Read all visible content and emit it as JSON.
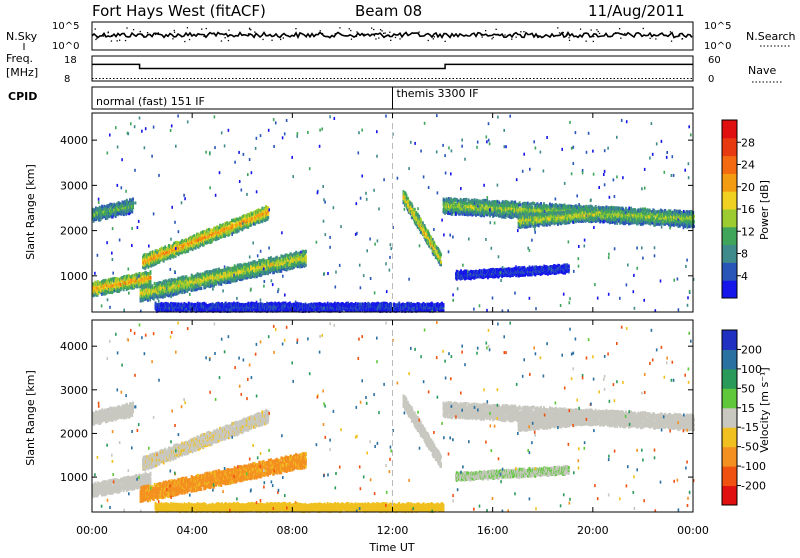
{
  "header": {
    "station": "Fort Hays West (fitACF)",
    "beam": "Beam 08",
    "date": "11/Aug/2011"
  },
  "nsky_panel": {
    "left_label": "N.Sky",
    "right_label": "N.Search",
    "left_ticks": [
      "10^5",
      "10^0"
    ],
    "right_ticks": [
      "10^5",
      "10^0"
    ]
  },
  "freq_panel": {
    "left_label_1": "Freq.",
    "left_label_2": "[MHz]",
    "right_label": "Nave",
    "left_ticks": [
      "18",
      "8"
    ],
    "right_ticks": [
      "60",
      "0"
    ],
    "freq_segments": [
      {
        "start_hour": 0.0,
        "end_hour": 1.9,
        "mhz": 14.0
      },
      {
        "start_hour": 1.9,
        "end_hour": 14.1,
        "mhz": 12.0
      },
      {
        "start_hour": 14.1,
        "end_hour": 24.0,
        "mhz": 14.0
      }
    ],
    "nave_level": 0.3
  },
  "cpid_panel": {
    "label": "CPID",
    "modes": [
      {
        "start_hour": 0.0,
        "label": "normal (fast) 151 IF"
      },
      {
        "start_hour": 12.0,
        "label": "themis 3300 IF"
      }
    ]
  },
  "power_panel": {
    "ylabel": "Slant Range [km]",
    "yticks": [
      "1000",
      "2000",
      "3000",
      "4000"
    ],
    "colorbar": {
      "title": "Power [dB]",
      "ticks": [
        "4",
        "8",
        "12",
        "16",
        "20",
        "24",
        "28"
      ],
      "colors": [
        "#1616ea",
        "#2a55b8",
        "#3f8a8a",
        "#3ea55a",
        "#9ccc2f",
        "#f0d020",
        "#f39c12",
        "#f36a10",
        "#e83a10",
        "#e01010"
      ]
    }
  },
  "velocity_panel": {
    "ylabel": "Slant Range [km]",
    "yticks": [
      "1000",
      "2000",
      "3000",
      "4000"
    ],
    "colorbar": {
      "title": "Velocity [m s⁻¹]",
      "ticks": [
        "200",
        "100",
        "50",
        "15",
        "-15",
        "-50",
        "-100",
        "-200"
      ],
      "colors": [
        "#2030c0",
        "#2a70a0",
        "#2a9a5a",
        "#5ec83a",
        "#c8c8c0",
        "#f0c020",
        "#f39020",
        "#f05010",
        "#e01010"
      ]
    }
  },
  "xaxis": {
    "label": "Time UT",
    "ticks": [
      "00:00",
      "04:00",
      "08:00",
      "12:00",
      "16:00",
      "20:00",
      "00:00"
    ]
  },
  "chart_data": {
    "type": "heatmap",
    "x_range_hours": [
      0,
      24
    ],
    "y_range_km": [
      200,
      4600
    ],
    "marker_hour": 12,
    "echo_bands": [
      {
        "name": "early-low",
        "start_hour": 0.0,
        "end_hour": 2.3,
        "range_start_km": 750,
        "range_end_km": 1000,
        "width_km": 280,
        "power_db": 22,
        "velocity": 0
      },
      {
        "name": "morning-upper",
        "start_hour": 2.0,
        "end_hour": 7.0,
        "range_start_km": 1350,
        "range_end_km": 2450,
        "width_km": 280,
        "power_db": 23,
        "velocity": -5
      },
      {
        "name": "morning-lower",
        "start_hour": 1.9,
        "end_hour": 8.5,
        "range_start_km": 650,
        "range_end_km": 1450,
        "width_km": 330,
        "power_db": 18,
        "velocity": -60
      },
      {
        "name": "early-high",
        "start_hour": 0.0,
        "end_hour": 1.6,
        "range_start_km": 2400,
        "range_end_km": 2600,
        "width_km": 280,
        "power_db": 14,
        "velocity": 0
      },
      {
        "name": "near-range",
        "start_hour": 2.5,
        "end_hour": 14.0,
        "range_start_km": 350,
        "range_end_km": 350,
        "width_km": 140,
        "power_db": 6,
        "velocity": -30
      },
      {
        "name": "post-noon-arc",
        "start_hour": 12.4,
        "end_hour": 13.9,
        "range_start_km": 2800,
        "range_end_km": 1400,
        "width_km": 280,
        "power_db": 21,
        "velocity": 0
      },
      {
        "name": "afternoon",
        "start_hour": 14.0,
        "end_hour": 24.0,
        "range_start_km": 2600,
        "range_end_km": 2300,
        "width_km": 330,
        "power_db": 16,
        "velocity": 0
      },
      {
        "name": "afternoon-mid",
        "start_hour": 17.0,
        "end_hour": 20.0,
        "range_start_km": 2250,
        "range_end_km": 2400,
        "width_km": 250,
        "power_db": 18,
        "velocity": 0
      },
      {
        "name": "afternoon-low",
        "start_hour": 14.5,
        "end_hour": 19.0,
        "range_start_km": 1050,
        "range_end_km": 1200,
        "width_km": 140,
        "power_db": 6,
        "velocity": 10
      }
    ]
  }
}
